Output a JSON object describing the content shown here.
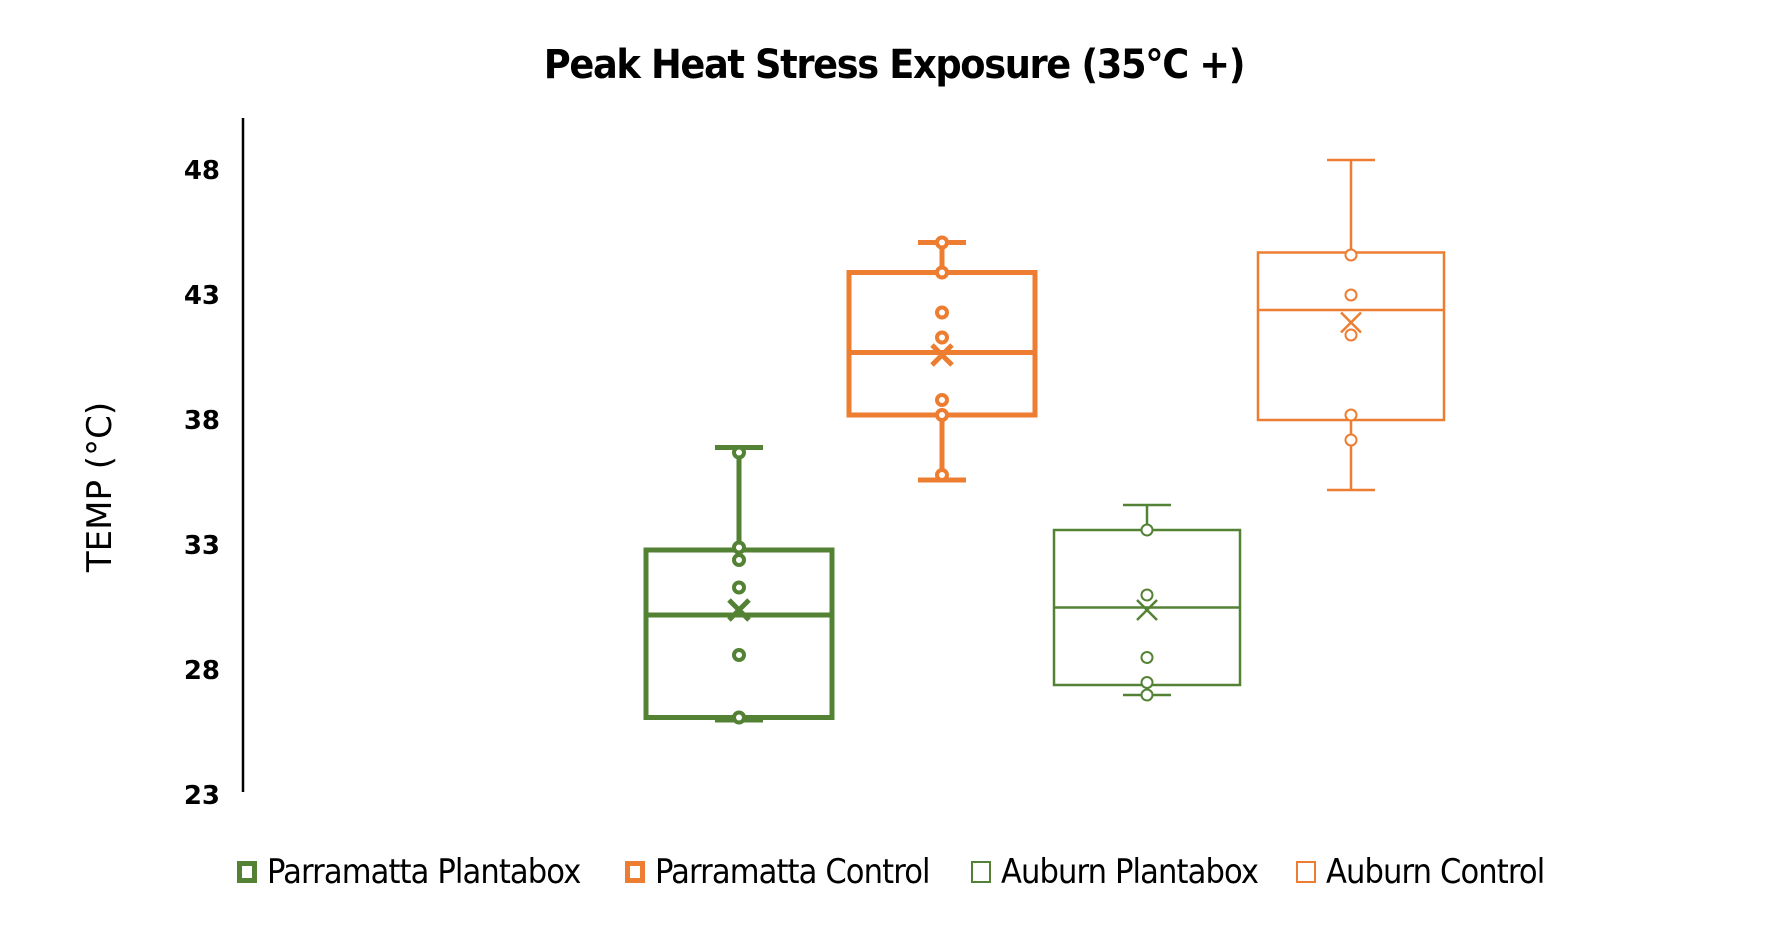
{
  "title": "Peak Heat Stress Exposure (35°C +)",
  "chart_data": {
    "type": "box",
    "title": "Peak Heat Stress Exposure (35°C +)",
    "xlabel": "",
    "ylabel": "TEMP (°C)",
    "ylim": [
      23,
      50
    ],
    "yticks": [
      23,
      28,
      33,
      38,
      43,
      48
    ],
    "grid": false,
    "legend_position": "bottom",
    "series": [
      {
        "name": "Parramatta Plantabox",
        "color": "#548235",
        "style": "thick",
        "min": 26.0,
        "q1": 26.1,
        "median": 30.2,
        "q3": 32.8,
        "max": 36.9,
        "mean": 30.4,
        "points": [
          36.7,
          32.9,
          32.4,
          31.3,
          28.6,
          26.1
        ]
      },
      {
        "name": "Parramatta Control",
        "color": "#ED7D31",
        "style": "thick",
        "min": 35.6,
        "q1": 38.2,
        "median": 40.7,
        "q3": 43.9,
        "max": 45.1,
        "mean": 40.6,
        "points": [
          45.1,
          43.9,
          42.3,
          41.3,
          38.8,
          38.2,
          35.8
        ]
      },
      {
        "name": "Auburn Plantabox",
        "color": "#548235",
        "style": "thin",
        "min": 27.0,
        "q1": 27.4,
        "median": 30.5,
        "q3": 33.6,
        "max": 34.6,
        "mean": 30.4,
        "points": [
          33.6,
          31.0,
          28.5,
          27.5,
          27.0
        ]
      },
      {
        "name": "Auburn Control",
        "color": "#ED7D31",
        "style": "thin",
        "min": 35.2,
        "q1": 38.0,
        "median": 42.4,
        "q3": 44.7,
        "max": 48.4,
        "mean": 41.9,
        "points": [
          44.6,
          43.0,
          41.4,
          38.2,
          37.2
        ]
      }
    ]
  },
  "axis": {
    "ylabel": "TEMP (°C)",
    "ticks": [
      "48",
      "43",
      "38",
      "33",
      "28",
      "23"
    ]
  },
  "legend": [
    {
      "label": "Parramatta Plantabox",
      "color": "#548235",
      "thick": true
    },
    {
      "label": "Parramatta Control",
      "color": "#ED7D31",
      "thick": true
    },
    {
      "label": "Auburn Plantabox",
      "color": "#548235",
      "thick": false
    },
    {
      "label": "Auburn Control",
      "color": "#ED7D31",
      "thick": false
    }
  ]
}
